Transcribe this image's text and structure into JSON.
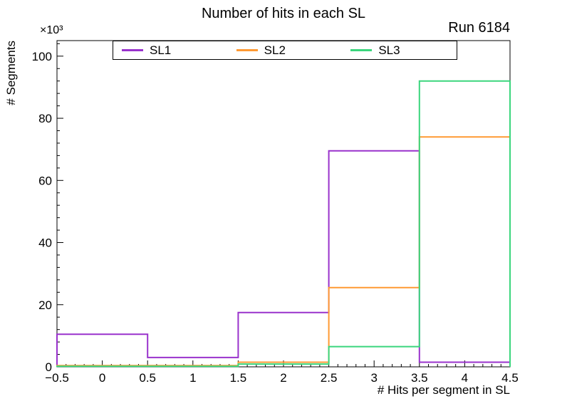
{
  "run_label": "Run 6184",
  "chart_data": {
    "type": "line",
    "subtype": "step-histogram",
    "title": "Number of hits in each SL",
    "xlabel": "# Hits per segment in SL",
    "ylabel": "# Segments",
    "y_scale_label": "×10³",
    "xlim": [
      -0.5,
      4.5
    ],
    "ylim": [
      0,
      105
    ],
    "bin_edges": [
      -0.5,
      0.5,
      1.5,
      2.5,
      3.5,
      4.5
    ],
    "x_tick_labels": [
      "−0.5",
      "0",
      "0.5",
      "1",
      "1.5",
      "2",
      "2.5",
      "3",
      "3.5",
      "4",
      "4.5"
    ],
    "y_ticks": [
      0,
      20,
      40,
      60,
      80,
      100
    ],
    "values_unit": "×10³ segments",
    "grid": false,
    "legend_position": "top-inside",
    "series": [
      {
        "name": "SL1",
        "color": "#9932cc",
        "values": [
          10.5,
          3,
          17.5,
          69.5,
          1.5
        ]
      },
      {
        "name": "SL2",
        "color": "#ff9a33",
        "values": [
          0.4,
          0.4,
          1.5,
          25.5,
          74
        ]
      },
      {
        "name": "SL3",
        "color": "#3bd67d",
        "values": [
          0.15,
          0.15,
          0.9,
          6.5,
          92
        ]
      }
    ]
  }
}
